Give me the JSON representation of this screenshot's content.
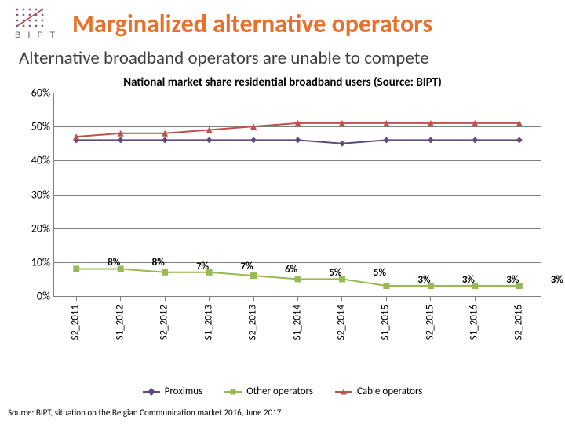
{
  "header": {
    "logo_text": "B I P T",
    "title": "Marginalized alternative operators"
  },
  "subtitle": "Alternative broadband operators are unable to compete",
  "chart": {
    "type": "line",
    "title": "National market share residential broadband users (Source: BIPT)",
    "categories": [
      "S2_2011",
      "S1_2012",
      "S2_2012",
      "S1_2013",
      "S2_2013",
      "S1_2014",
      "S2_2014",
      "S1_2015",
      "S2_2015",
      "S1_2016",
      "S2_2016"
    ],
    "ylim": [
      0,
      60
    ],
    "ytick_step": 10,
    "gridline_color": "#808080",
    "background_color": "#ffffff",
    "series": [
      {
        "name": "Proximus",
        "color": "#604a7b",
        "marker": "diamond",
        "values": [
          46,
          46,
          46,
          46,
          46,
          46,
          45,
          46,
          46,
          46,
          46
        ]
      },
      {
        "name": "Other operators",
        "color": "#98b954",
        "marker": "square",
        "values": [
          8,
          8,
          7,
          7,
          6,
          5,
          5,
          3,
          3,
          3,
          3
        ],
        "show_labels": true
      },
      {
        "name": "Cable operators",
        "color": "#c0504d",
        "marker": "triangle",
        "values": [
          47,
          48,
          48,
          49,
          50,
          51,
          51,
          51,
          51,
          51,
          51
        ]
      }
    ],
    "label_fontsize": 13,
    "axis_fontsize": 14,
    "marker_size": 8
  },
  "legend": {
    "items": [
      "Proximus",
      "Other operators",
      "Cable operators"
    ]
  },
  "source_note": "Source: BIPT, situation on the Belgian Communication market 2016, June 2017"
}
